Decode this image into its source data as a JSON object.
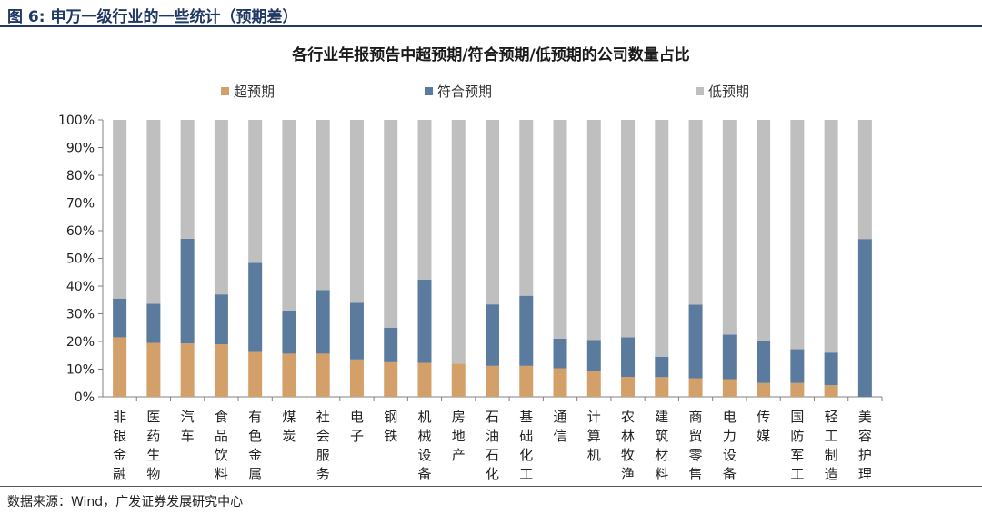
{
  "figure": {
    "caption": "图 6:  申万一级行业的一些统计（预期差）",
    "source": "数据来源：Wind，广发证券发展研究中心"
  },
  "chart_data": {
    "type": "bar",
    "stacked": true,
    "title": "各行业年报预告中超预期/符合预期/低预期的公司数量占比",
    "categories": [
      "非银金融",
      "医药生物",
      "汽车",
      "食品饮料",
      "有色金属",
      "煤炭",
      "社会服务",
      "电子",
      "钢铁",
      "机械设备",
      "房地产",
      "石油石化",
      "基础化工",
      "通信",
      "计算机",
      "农林牧渔",
      "建筑材料",
      "商贸零售",
      "电力设备",
      "传媒",
      "国防军工",
      "轻工制造",
      "美容护理"
    ],
    "series": [
      {
        "name": "超预期",
        "color": "#d4a06a",
        "values": [
          21.5,
          19.5,
          19.3,
          19.0,
          16.2,
          15.6,
          15.6,
          13.5,
          12.5,
          12.3,
          12.0,
          11.2,
          11.2,
          10.3,
          9.5,
          7.2,
          7.1,
          6.7,
          6.4,
          5.0,
          5.0,
          4.2,
          0.0
        ]
      },
      {
        "name": "符合预期",
        "color": "#5b7b9e",
        "values": [
          14.0,
          14.1,
          37.8,
          18.0,
          32.2,
          15.3,
          23.0,
          20.5,
          12.5,
          30.0,
          0.0,
          22.2,
          25.3,
          10.7,
          11.0,
          14.3,
          7.4,
          26.6,
          16.1,
          15.0,
          12.2,
          11.8,
          57.0
        ]
      },
      {
        "name": "低预期",
        "color": "#bfbfbf",
        "values": [
          64.5,
          66.4,
          42.9,
          63.0,
          51.6,
          69.1,
          61.4,
          66.0,
          75.0,
          57.7,
          88.0,
          66.6,
          63.5,
          79.0,
          79.5,
          78.5,
          85.5,
          66.7,
          77.5,
          80.0,
          82.8,
          84.0,
          43.0
        ]
      }
    ],
    "yticks": [
      "0%",
      "10%",
      "20%",
      "30%",
      "40%",
      "50%",
      "60%",
      "70%",
      "80%",
      "90%",
      "100%"
    ],
    "ylim": [
      0,
      100
    ],
    "xlabel": "",
    "ylabel": "",
    "legend_position": "top"
  }
}
